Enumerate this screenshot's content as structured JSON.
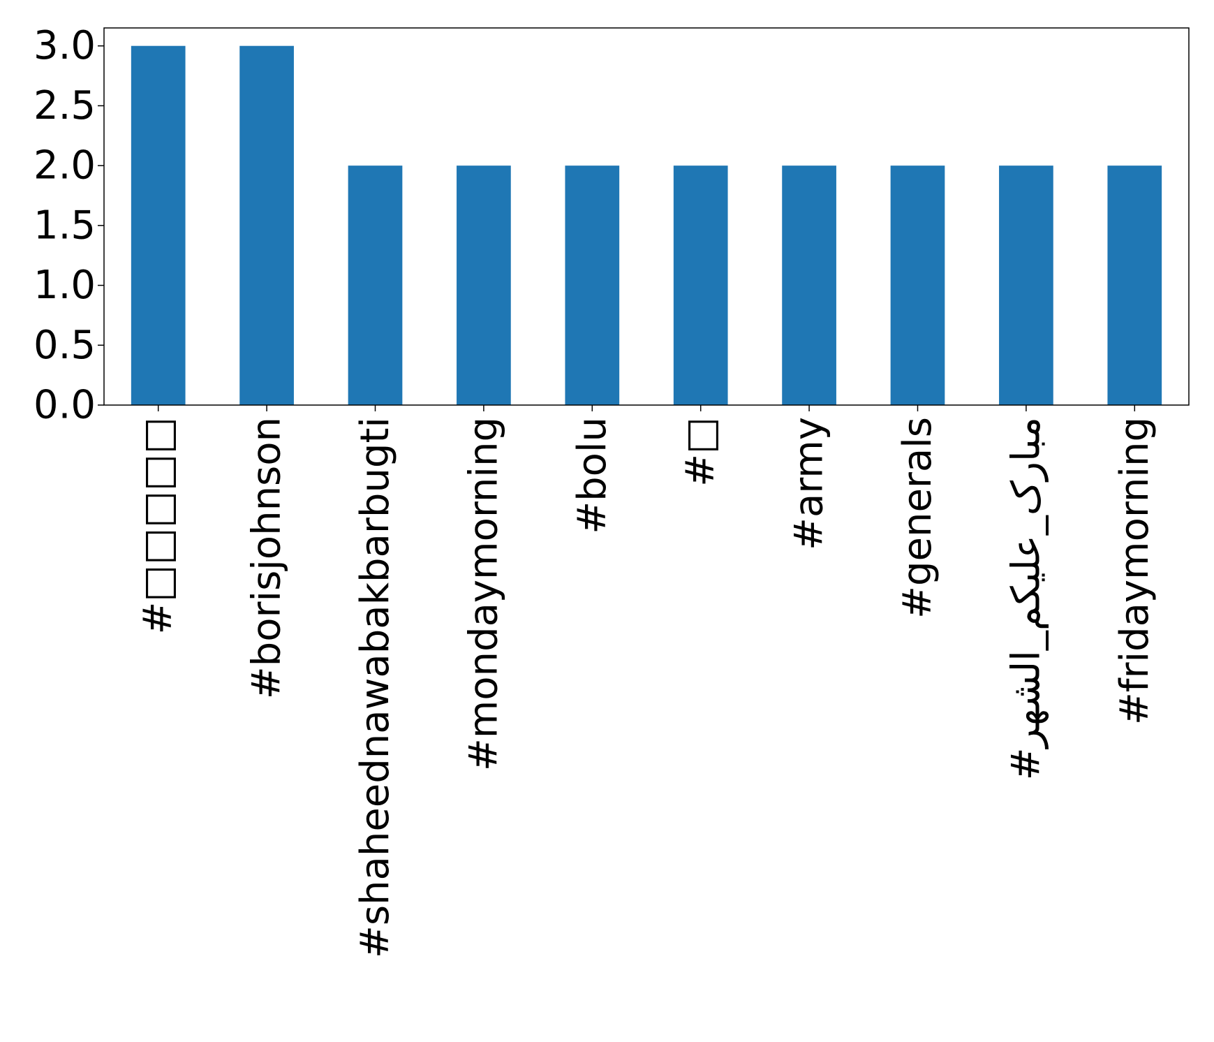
{
  "chart_data": {
    "type": "bar",
    "categories": [
      "#□□□□□",
      "#borisjohnson",
      "#shaheednawabakbarbugti",
      "#mondaymorning",
      "#bolu",
      "#□",
      "#army",
      "#generals",
      "#مبارک_عليکم_الشهر",
      "#fridaymorning"
    ],
    "values": [
      3,
      3,
      2,
      2,
      2,
      2,
      2,
      2,
      2,
      2
    ],
    "title": "",
    "xlabel": "",
    "ylabel": "",
    "ylim": [
      0,
      3.15
    ],
    "yticks": [
      0.0,
      0.5,
      1.0,
      1.5,
      2.0,
      2.5,
      3.0
    ],
    "ytick_labels": [
      "0.0",
      "0.5",
      "1.0",
      "1.5",
      "2.0",
      "2.5",
      "3.0"
    ],
    "bar_color": "#1f77b4",
    "grid": false,
    "legend": "none"
  }
}
